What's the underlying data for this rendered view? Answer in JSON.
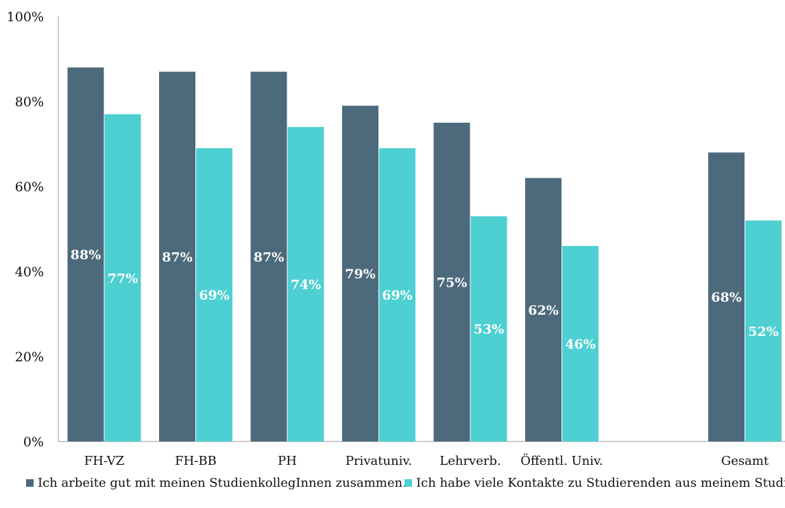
{
  "chart_data": {
    "type": "bar",
    "categories": [
      "FH-VZ",
      "FH-BB",
      "PH",
      "Privatuniv.",
      "Lehrverb.",
      "Öffentl. Univ.",
      "",
      "Gesamt"
    ],
    "series": [
      {
        "name": "Ich arbeite gut mit meinen StudienkollegInnen zusammen.",
        "values": [
          88,
          87,
          87,
          79,
          75,
          62,
          null,
          68
        ],
        "labels": [
          "88%",
          "87%",
          "87%",
          "79%",
          "75%",
          "62%",
          "",
          "68%"
        ],
        "color": "#4d6a7c"
      },
      {
        "name": "Ich habe viele Kontakte zu Studierenden aus meinem Studium.",
        "values": [
          77,
          69,
          74,
          69,
          53,
          46,
          null,
          52
        ],
        "labels": [
          "77%",
          "69%",
          "74%",
          "69%",
          "53%",
          "46%",
          "",
          "52%"
        ],
        "color": "#4ecfd1"
      }
    ],
    "y_ticks": [
      0,
      20,
      40,
      60,
      80,
      100
    ],
    "y_tick_labels": [
      "0%",
      "20%",
      "40%",
      "60%",
      "80%",
      "100%"
    ],
    "ylim": [
      0,
      100
    ],
    "grid": false,
    "legend_position": "bottom"
  }
}
